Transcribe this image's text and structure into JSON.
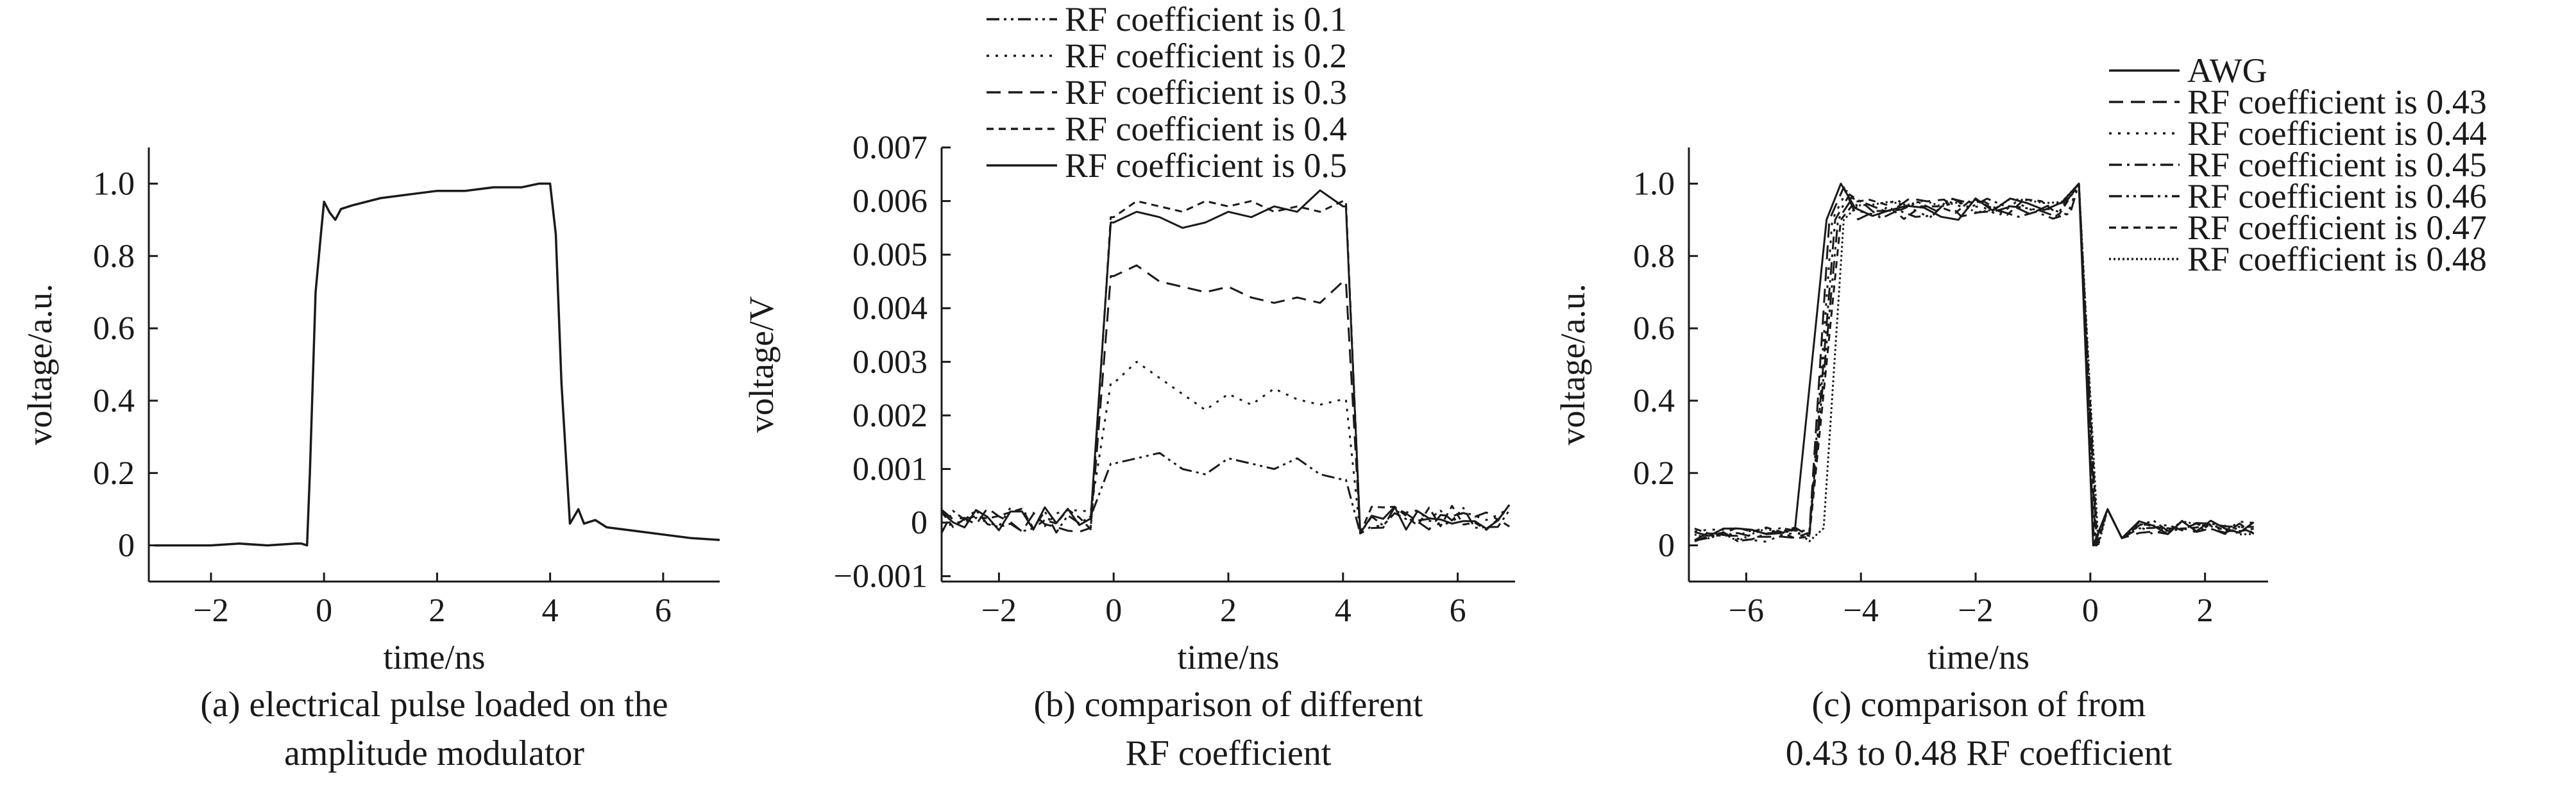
{
  "chart_data": [
    {
      "id": "a",
      "type": "line",
      "xlabel": "time/ns",
      "ylabel": "voltage/a.u.",
      "caption": [
        "(a) electrical pulse loaded on the",
        "amplitude modulator"
      ],
      "xlim": [
        -3.1,
        7.0
      ],
      "ylim": [
        -0.1,
        1.1
      ],
      "xticks": [
        -2,
        0,
        2,
        4,
        6
      ],
      "xtick_labels": [
        "−2",
        "0",
        "2",
        "4",
        "6"
      ],
      "yticks": [
        0,
        0.2,
        0.4,
        0.6,
        0.8,
        1.0
      ],
      "ytick_labels": [
        "0",
        "0.2",
        "0.4",
        "0.6",
        "0.8",
        "1.0"
      ],
      "grid": false,
      "legend": null,
      "series": [
        {
          "style": "solid",
          "x": [
            -3.0,
            -2.5,
            -2.0,
            -1.5,
            -1.0,
            -0.5,
            -0.4,
            -0.3,
            -0.25,
            -0.15,
            -0.05,
            0.0,
            0.1,
            0.2,
            0.3,
            0.5,
            1.0,
            1.5,
            2.0,
            2.5,
            3.0,
            3.5,
            3.8,
            4.0,
            4.1,
            4.2,
            4.35,
            4.5,
            4.6,
            4.8,
            5.0,
            5.5,
            6.0,
            6.5,
            7.0
          ],
          "y": [
            0.0,
            0.0,
            0.0,
            0.005,
            0.0,
            0.005,
            0.005,
            0.0,
            0.2,
            0.7,
            0.87,
            0.95,
            0.92,
            0.9,
            0.93,
            0.94,
            0.96,
            0.97,
            0.98,
            0.98,
            0.99,
            0.99,
            1.0,
            1.0,
            0.86,
            0.45,
            0.06,
            0.1,
            0.06,
            0.07,
            0.05,
            0.04,
            0.03,
            0.02,
            0.015
          ]
        }
      ]
    },
    {
      "id": "b",
      "type": "line",
      "xlabel": "time/ns",
      "ylabel": "voltage/V",
      "caption": [
        "(b) comparison of different",
        "RF coefficient"
      ],
      "xlim": [
        -3.0,
        7.0
      ],
      "ylim": [
        -0.0011,
        0.007
      ],
      "xticks": [
        -2,
        0,
        2,
        4,
        6
      ],
      "xtick_labels": [
        "−2",
        "0",
        "2",
        "4",
        "6"
      ],
      "yticks": [
        -0.001,
        0,
        0.001,
        0.002,
        0.003,
        0.004,
        0.005,
        0.006,
        0.007
      ],
      "ytick_labels": [
        "−0.001",
        "0",
        "0.001",
        "0.002",
        "0.003",
        "0.004",
        "0.005",
        "0.006",
        "0.007"
      ],
      "grid": false,
      "legend": "top",
      "series": [
        {
          "name": "RF coefficient is 0.1",
          "style": "dashdotdot",
          "level": 0.001,
          "rise": 0.0011,
          "shape": [
            0.0011,
            0.0012,
            0.0013,
            0.001,
            0.0009,
            0.0012,
            0.0011,
            0.001,
            0.0012,
            0.0009,
            0.0008
          ]
        },
        {
          "name": "RF coefficient is 0.2",
          "style": "dotted",
          "level": 0.0023,
          "rise": 0.0026,
          "shape": [
            0.0026,
            0.003,
            0.0027,
            0.0024,
            0.0021,
            0.0024,
            0.0022,
            0.0025,
            0.0023,
            0.0022,
            0.0023
          ]
        },
        {
          "name": "RF coefficient is 0.3",
          "style": "dashed",
          "level": 0.0042,
          "rise": 0.0046,
          "shape": [
            0.0046,
            0.0048,
            0.0045,
            0.0044,
            0.0043,
            0.0044,
            0.0042,
            0.0041,
            0.0042,
            0.0041,
            0.0045
          ]
        },
        {
          "name": "RF coefficient is 0.4",
          "style": "shortdash",
          "level": 0.0058,
          "rise": 0.0057,
          "shape": [
            0.0057,
            0.006,
            0.0059,
            0.0058,
            0.006,
            0.0059,
            0.006,
            0.0058,
            0.0059,
            0.0058,
            0.006
          ]
        },
        {
          "name": "RF coefficient is 0.5",
          "style": "solid",
          "level": 0.0057,
          "rise": 0.0056,
          "shape": [
            0.0056,
            0.0058,
            0.0057,
            0.0055,
            0.0056,
            0.0058,
            0.0057,
            0.0059,
            0.0058,
            0.0062,
            0.0059
          ]
        }
      ],
      "x_shape": [
        0.0,
        0.4,
        0.8,
        1.2,
        1.6,
        2.0,
        2.4,
        2.8,
        3.2,
        3.6,
        4.0
      ],
      "edges": {
        "rise_start": -0.35,
        "rise_end": -0.05,
        "fall_start": 4.05,
        "fall_end": 4.3
      }
    },
    {
      "id": "c",
      "type": "line",
      "xlabel": "time/ns",
      "ylabel": "voltage/a.u.",
      "caption": [
        "(c) comparison of from",
        "0.43 to 0.48 RF coefficient"
      ],
      "xlim": [
        -7.0,
        3.1
      ],
      "ylim": [
        -0.1,
        1.1
      ],
      "xticks": [
        -6,
        -4,
        -2,
        0,
        2
      ],
      "xtick_labels": [
        "−6",
        "−4",
        "−2",
        "0",
        "2"
      ],
      "yticks": [
        0,
        0.2,
        0.4,
        0.6,
        0.8,
        1.0
      ],
      "ytick_labels": [
        "0",
        "0.2",
        "0.4",
        "0.6",
        "0.8",
        "1.0"
      ],
      "grid": false,
      "legend": "top-right",
      "series": [
        {
          "name": "AWG",
          "style": "solid",
          "offset": 0.0
        },
        {
          "name": "RF coefficient is 0.43",
          "style": "dashed",
          "offset": 0.05
        },
        {
          "name": "RF coefficient is 0.44",
          "style": "dotted",
          "offset": 0.1
        },
        {
          "name": "RF coefficient is 0.45",
          "style": "dashdot",
          "offset": 0.15
        },
        {
          "name": "RF coefficient is 0.46",
          "style": "dashdotdot",
          "offset": 0.2
        },
        {
          "name": "RF coefficient is 0.47",
          "style": "shortdash",
          "offset": 0.25
        },
        {
          "name": "RF coefficient is 0.48",
          "style": "finedot",
          "offset": 0.3
        }
      ],
      "edges": {
        "rise_start": -4.95,
        "rise_end": -4.6,
        "fall_start": -0.15,
        "fall_end": 0.05
      },
      "baseline": 0.03,
      "plateau": 0.93
    }
  ]
}
